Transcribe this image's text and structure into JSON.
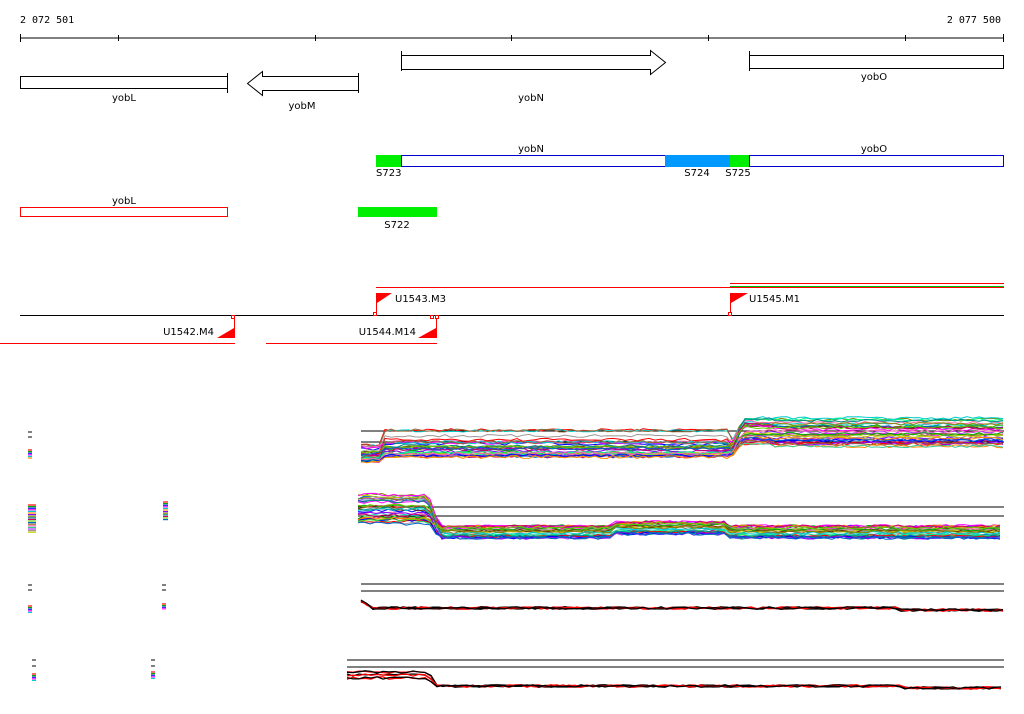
{
  "ruler": {
    "start_label": "2 072 501",
    "end_label": "2 077 500"
  },
  "genes": {
    "yobL": "yobL",
    "yobM": "yobM",
    "yobN": "yobN",
    "yobO": "yobO"
  },
  "segments": {
    "s723": "S723",
    "s724": "S724",
    "s725": "S725",
    "s722": "S722"
  },
  "transcripts": {
    "u1543": "U1543.M3",
    "u1545": "U1545.M1",
    "u1542": "U1542.M4",
    "u1544": "U1544.M14"
  },
  "colors": {
    "green": "#00ee00",
    "blue": "#0099ff",
    "gene_outline_blue": "#0000cc",
    "red": "#ff0000",
    "black": "#000000"
  }
}
